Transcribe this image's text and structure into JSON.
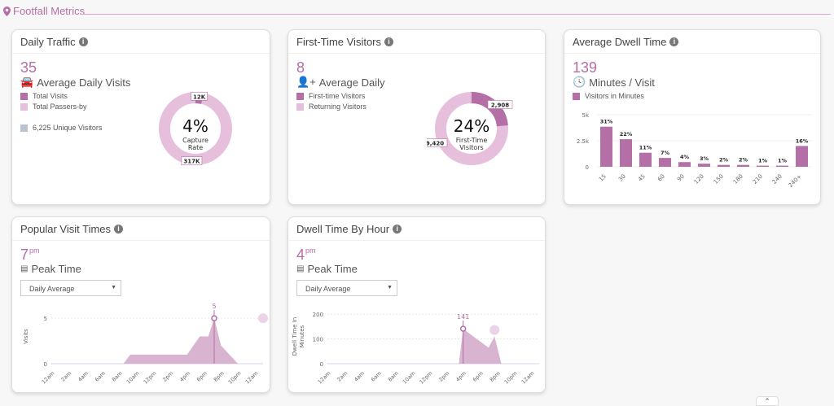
{
  "section": {
    "title": "Footfall Metrics",
    "icon": "map-pin-icon"
  },
  "colors": {
    "accent": "#b46fa6",
    "light": "#e6bfdc",
    "unique": "#b8c4d0"
  },
  "daily_traffic": {
    "title": "Daily Traffic",
    "value": "35",
    "subtitle": "Average Daily Visits",
    "icon": "car-icon",
    "legend": [
      "Total Visits",
      "Total Passers-by"
    ],
    "unique": "6,225 Unique Visitors",
    "donut": {
      "center": "4%",
      "caption1": "Capture",
      "caption2": "Rate",
      "labels": [
        "12K",
        "317K"
      ],
      "values": [
        12,
        317
      ]
    }
  },
  "first_time": {
    "title": "First-Time Visitors",
    "value": "8",
    "subtitle": "Average Daily",
    "icon": "user-plus-icon",
    "legend": [
      "First-time Visitors",
      "Returning Visitors"
    ],
    "donut": {
      "center": "24%",
      "caption1": "First-Time",
      "caption2": "Visitors",
      "labels": [
        "2,908",
        "9,420"
      ],
      "values": [
        2908,
        9420
      ]
    }
  },
  "dwell": {
    "title": "Average Dwell Time",
    "value": "139",
    "subtitle": "Minutes / Visit",
    "icon": "clock-icon",
    "legend": "Visitors in Minutes"
  },
  "popular": {
    "title": "Popular Visit Times",
    "value": "7",
    "unit": "pm",
    "subtitle": "Peak Time",
    "icon": "bar-chart-icon",
    "select": "Daily Average"
  },
  "dwell_hour": {
    "title": "Dwell Time By Hour",
    "value": "4",
    "unit": "pm",
    "subtitle": "Peak Time",
    "icon": "bar-chart-icon",
    "select": "Daily Average"
  },
  "chart_data": [
    {
      "type": "bar",
      "categories": [
        "15",
        "30",
        "45",
        "60",
        "90",
        "120",
        "150",
        "180",
        "210",
        "240",
        "240+"
      ],
      "values": [
        3850,
        2650,
        1350,
        850,
        450,
        300,
        180,
        180,
        110,
        110,
        2000
      ],
      "labels": [
        "31%",
        "22%",
        "11%",
        "7%",
        "4%",
        "3%",
        "2%",
        "2%",
        "1%",
        "1%",
        "16%"
      ],
      "yticks": [
        "0",
        "2.5k",
        "5k"
      ],
      "ylim": [
        0,
        5000
      ],
      "series_name": "Visitors in Minutes"
    },
    {
      "type": "area",
      "ylabel": "Visits",
      "ylim": [
        0,
        6
      ],
      "yticks": [
        0,
        5
      ],
      "xticks": [
        "12am",
        "2am",
        "4am",
        "6am",
        "8am",
        "10am",
        "12pm",
        "2pm",
        "4pm",
        "6pm",
        "8pm",
        "10pm",
        "12am"
      ],
      "x": [
        0,
        8.5,
        9.3,
        16,
        17.5,
        18.5,
        19.2,
        20,
        21,
        22,
        22.5,
        24
      ],
      "y": [
        0,
        0,
        1,
        1,
        3,
        3,
        5,
        2,
        1,
        0,
        0,
        0
      ],
      "peak_label": "5",
      "peak_x": 19.2,
      "peak_y": 5
    },
    {
      "type": "area",
      "ylabel": "Dwell Time In Minutes",
      "ylim": [
        0,
        220
      ],
      "yticks": [
        0,
        100,
        200
      ],
      "xticks": [
        "12am",
        "2am",
        "4am",
        "6am",
        "8am",
        "10am",
        "12pm",
        "2pm",
        "4pm",
        "6pm",
        "8pm",
        "10pm",
        "12am"
      ],
      "x": [
        0,
        15.5,
        16,
        17,
        18,
        19,
        19.7,
        20.5,
        24
      ],
      "y": [
        0,
        0,
        141,
        115,
        90,
        65,
        110,
        0,
        0
      ],
      "peak_label": "141",
      "peak_x": 16,
      "peak_y": 141
    }
  ]
}
